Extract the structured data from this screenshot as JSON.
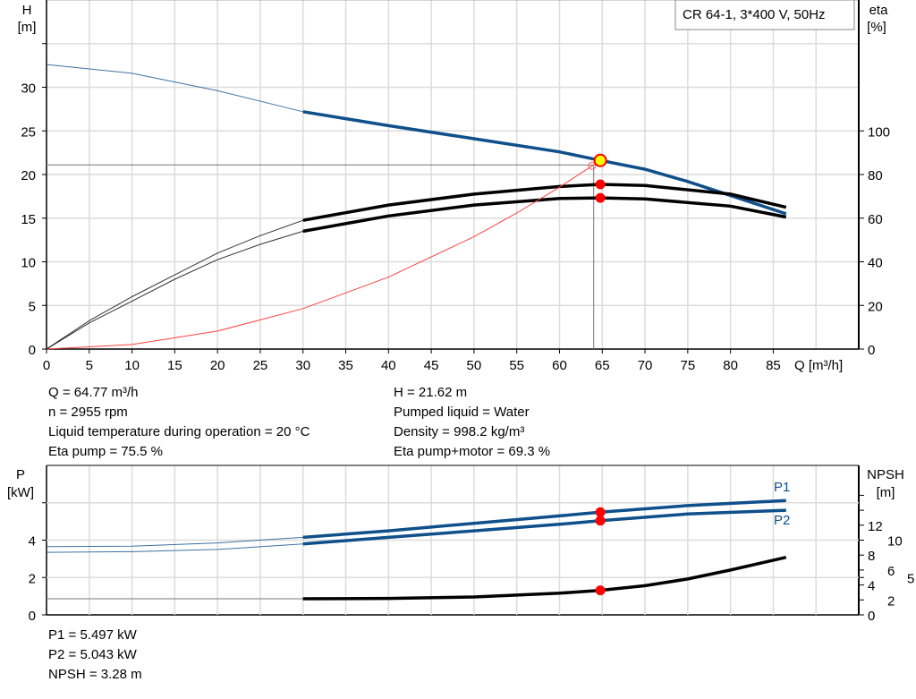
{
  "chart_data": [
    {
      "type": "line",
      "title": "CR 64-1, 3*400 V, 50Hz",
      "xlabel": "Q [m³/h]",
      "ylabel_left": [
        "H",
        "[m]"
      ],
      "ylabel_right": [
        "eta",
        "[%]"
      ],
      "xlim": [
        0,
        95
      ],
      "ylim_left": [
        0,
        40
      ],
      "ylim_right": [
        0,
        160
      ],
      "x_ticks": [
        0,
        5,
        10,
        15,
        20,
        25,
        30,
        35,
        40,
        45,
        50,
        55,
        60,
        65,
        70,
        75,
        80,
        85
      ],
      "y_ticks_left": [
        0,
        5,
        10,
        15,
        20,
        25,
        30
      ],
      "y_ticks_right": [
        0,
        20,
        40,
        60,
        80,
        100
      ],
      "grid": true,
      "series": [
        {
          "key": "H",
          "axis": "left",
          "color": "#0f4f8a",
          "thick_from": 30,
          "points": [
            [
              0,
              32.6
            ],
            [
              10,
              31.6
            ],
            [
              20,
              29.6
            ],
            [
              30,
              27.2
            ],
            [
              40,
              25.6
            ],
            [
              50,
              24.1
            ],
            [
              60,
              22.6
            ],
            [
              64.77,
              21.62
            ],
            [
              70,
              20.6
            ],
            [
              75,
              19.2
            ],
            [
              80,
              17.6
            ],
            [
              86.5,
              15.5
            ]
          ]
        },
        {
          "key": "eta_pump",
          "axis": "right",
          "color": "#000000",
          "thick_from": 30,
          "points": [
            [
              0,
              0
            ],
            [
              5,
              13
            ],
            [
              10,
              24
            ],
            [
              15,
              34
            ],
            [
              20,
              44
            ],
            [
              25,
              52
            ],
            [
              30,
              59
            ],
            [
              40,
              66
            ],
            [
              50,
              71
            ],
            [
              60,
              74.5
            ],
            [
              64.77,
              75.5
            ],
            [
              70,
              75
            ],
            [
              80,
              71
            ],
            [
              86.5,
              65
            ]
          ]
        },
        {
          "key": "eta_total",
          "axis": "right",
          "color": "#000000",
          "thick_from": 30,
          "points": [
            [
              0,
              0
            ],
            [
              5,
              12
            ],
            [
              10,
              22
            ],
            [
              15,
              32
            ],
            [
              20,
              41
            ],
            [
              25,
              48
            ],
            [
              30,
              54
            ],
            [
              40,
              61
            ],
            [
              50,
              66
            ],
            [
              60,
              69
            ],
            [
              64.77,
              69.3
            ],
            [
              70,
              68.8
            ],
            [
              80,
              65.5
            ],
            [
              86.5,
              60.5
            ]
          ]
        },
        {
          "key": "system_curve",
          "axis": "left",
          "color": "#ff4040",
          "points": [
            [
              0,
              0
            ],
            [
              10,
              0.52
            ],
            [
              20,
              2.06
            ],
            [
              30,
              4.64
            ],
            [
              40,
              8.25
            ],
            [
              50,
              12.88
            ],
            [
              55,
              15.59
            ],
            [
              60,
              18.55
            ],
            [
              64.77,
              21.62
            ]
          ]
        }
      ],
      "duty_point": {
        "Q": 64.77,
        "H": 21.62,
        "eta_pump": 75.5,
        "eta_total": 69.3,
        "marker_color": "#ff0000",
        "h_marker_color": "#ffff00"
      },
      "reference_lines": {
        "Q": 64.0,
        "H": 21.1
      }
    },
    {
      "type": "line",
      "xlim": [
        0,
        95
      ],
      "ylabel_left": [
        "P",
        "[kW]"
      ],
      "ylabel_right": [
        "NPSH",
        "[m]"
      ],
      "ylim_left": [
        0,
        8
      ],
      "ylim_right": [
        0,
        20
      ],
      "y_ticks_left": [
        0,
        2,
        4
      ],
      "y_ticks_right": [
        0,
        2,
        4,
        5,
        6,
        8,
        10,
        12
      ],
      "grid": true,
      "series": [
        {
          "key": "P1",
          "name": "P1",
          "axis": "left",
          "color": "#0f4f8a",
          "thick_from": 30,
          "points": [
            [
              0,
              3.65
            ],
            [
              10,
              3.68
            ],
            [
              20,
              3.85
            ],
            [
              30,
              4.15
            ],
            [
              40,
              4.5
            ],
            [
              50,
              4.9
            ],
            [
              60,
              5.3
            ],
            [
              64.77,
              5.497
            ],
            [
              75,
              5.85
            ],
            [
              86.5,
              6.12
            ]
          ]
        },
        {
          "key": "P2",
          "name": "P2",
          "axis": "left",
          "color": "#0f4f8a",
          "thick_from": 30,
          "points": [
            [
              0,
              3.35
            ],
            [
              10,
              3.38
            ],
            [
              20,
              3.5
            ],
            [
              30,
              3.8
            ],
            [
              40,
              4.15
            ],
            [
              50,
              4.5
            ],
            [
              60,
              4.85
            ],
            [
              64.77,
              5.043
            ],
            [
              75,
              5.4
            ],
            [
              86.5,
              5.6
            ]
          ]
        },
        {
          "key": "NPSH",
          "axis": "right",
          "color": "#000000",
          "points": [
            [
              30,
              2.15
            ],
            [
              40,
              2.2
            ],
            [
              50,
              2.4
            ],
            [
              60,
              2.9
            ],
            [
              64.77,
              3.28
            ],
            [
              70,
              3.9
            ],
            [
              75,
              4.8
            ],
            [
              80,
              6
            ],
            [
              86.5,
              7.7
            ]
          ]
        }
      ],
      "duty_point": {
        "Q": 64.77,
        "P1": 5.497,
        "P2": 5.043,
        "NPSH": 3.28
      }
    }
  ],
  "info_top_left": [
    "Q = 64.77 m³/h",
    "n = 2955 rpm",
    "Liquid temperature during operation = 20 °C",
    "Eta pump = 75.5 %"
  ],
  "info_top_right": [
    "H = 21.62 m",
    "Pumped liquid = Water",
    "Density = 998.2 kg/m³",
    "Eta pump+motor = 69.3 %"
  ],
  "info_bottom": [
    "P1 = 5.497 kW",
    "P2 = 5.043 kW",
    "NPSH = 3.28 m"
  ]
}
